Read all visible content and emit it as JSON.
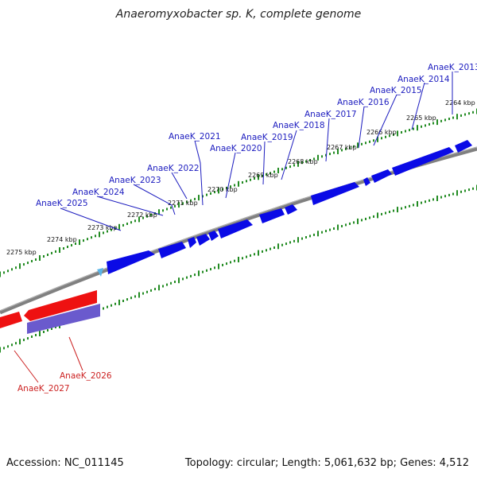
{
  "title": "Anaeromyxobacter sp. K, complete genome",
  "footer": {
    "accession": "Accession: NC_011145",
    "summary": "Topology: circular; Length: 5,061,632 bp; Genes: 4,512"
  },
  "colors": {
    "forward_gene": "#0a0ae6",
    "reverse_gene": "#ee1111",
    "rna_feature": "#6a5acd",
    "backbone": "#808080",
    "ticks": "#228b22",
    "forward_label": "#1c1cbf",
    "reverse_label": "#cc2222",
    "origin_marker": "#5ab4e6"
  },
  "kbp_labels": [
    "2264 kbp",
    "2265 kbp",
    "2266 kbp",
    "2267 kbp",
    "2268 kbp",
    "2269 kbp",
    "2270 kbp",
    "2271 kbp",
    "2272 kbp",
    "2273 kbp",
    "2274 kbp",
    "2275 kbp"
  ],
  "forward_genes": [
    "AnaeK_2013",
    "AnaeK_2014",
    "AnaeK_2015",
    "AnaeK_2016",
    "AnaeK_2017",
    "AnaeK_2018",
    "AnaeK_2019",
    "AnaeK_2020",
    "AnaeK_2021",
    "AnaeK_2022",
    "AnaeK_2023",
    "AnaeK_2024",
    "AnaeK_2025"
  ],
  "reverse_genes": [
    "AnaeK_2026",
    "AnaeK_2027"
  ]
}
